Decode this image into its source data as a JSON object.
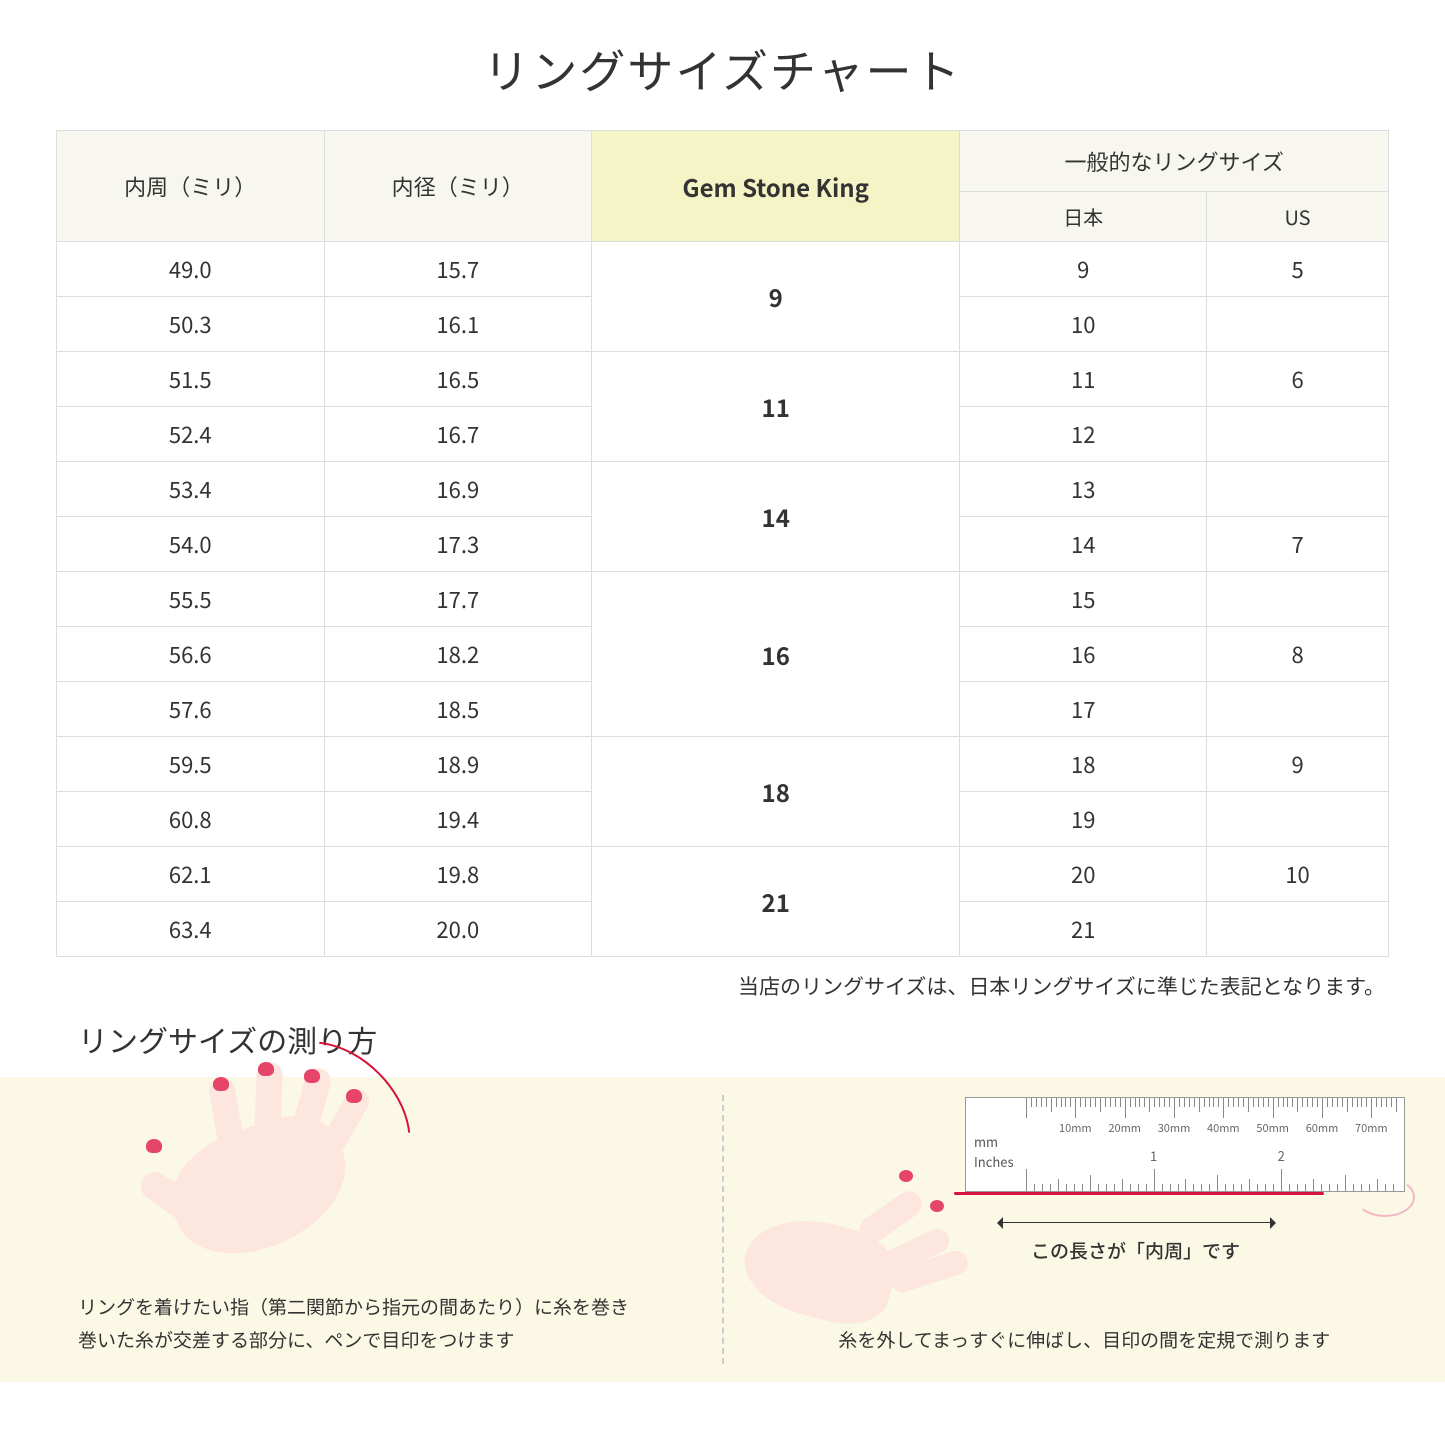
{
  "title": "リングサイズチャート",
  "headers": {
    "col1": "内周（ミリ）",
    "col2": "内径（ミリ）",
    "gsk": "Gem Stone King",
    "general": "一般的なリングサイズ",
    "jp": "日本",
    "us": "US"
  },
  "rows": [
    {
      "c": "49.0",
      "d": "15.7",
      "g": "9",
      "grs": 2,
      "j": "9",
      "u": "5"
    },
    {
      "c": "50.3",
      "d": "16.1",
      "j": "10",
      "u": ""
    },
    {
      "c": "51.5",
      "d": "16.5",
      "g": "11",
      "grs": 2,
      "j": "11",
      "u": "6"
    },
    {
      "c": "52.4",
      "d": "16.7",
      "j": "12",
      "u": ""
    },
    {
      "c": "53.4",
      "d": "16.9",
      "g": "14",
      "grs": 2,
      "j": "13",
      "u": ""
    },
    {
      "c": "54.0",
      "d": "17.3",
      "j": "14",
      "u": "7"
    },
    {
      "c": "55.5",
      "d": "17.7",
      "g": "16",
      "grs": 3,
      "j": "15",
      "u": ""
    },
    {
      "c": "56.6",
      "d": "18.2",
      "j": "16",
      "u": "8"
    },
    {
      "c": "57.6",
      "d": "18.5",
      "j": "17",
      "u": ""
    },
    {
      "c": "59.5",
      "d": "18.9",
      "g": "18",
      "grs": 2,
      "j": "18",
      "u": "9"
    },
    {
      "c": "60.8",
      "d": "19.4",
      "j": "19",
      "u": ""
    },
    {
      "c": "62.1",
      "d": "19.8",
      "g": "21",
      "grs": 2,
      "j": "20",
      "u": "10"
    },
    {
      "c": "63.4",
      "d": "20.0",
      "j": "21",
      "u": ""
    }
  ],
  "note": "当店のリングサイズは、日本リングサイズに準じた表記となります。",
  "howto_title": "リングサイズの測り方",
  "left_caption": "リングを着けたい指（第二関節から指元の間あたり）に糸を巻き\n巻いた糸が交差する部分に、ペンで目印をつけます",
  "right_caption": "糸を外してまっすぐに伸ばし、目印の間を定規で測ります",
  "arrow_label": "この長さが「内周」です",
  "ruler": {
    "mm_marks": [
      10,
      20,
      30,
      40,
      50,
      60,
      70
    ],
    "mm_label": "mm",
    "in_label": "Inches",
    "in_marks": [
      1,
      2
    ]
  },
  "colors": {
    "header_bg": "#f7f7f0",
    "gsk_bg": "#f5f4c7",
    "howto_bg": "#fbf9e5",
    "skin": "#fce6de",
    "nail": "#e6456a",
    "thread": "#d7123c",
    "border": "#ddd"
  }
}
